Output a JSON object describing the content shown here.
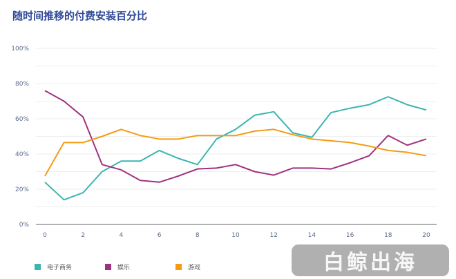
{
  "chart_data": {
    "type": "line",
    "title": "随时间推移的付费安装百分比",
    "xlabel": "",
    "ylabel": "",
    "x": [
      0,
      1,
      2,
      3,
      4,
      5,
      6,
      7,
      8,
      9,
      10,
      11,
      12,
      13,
      14,
      15,
      16,
      17,
      18,
      19,
      20
    ],
    "xticks": [
      "0",
      "2",
      "4",
      "6",
      "8",
      "10",
      "12",
      "14",
      "16",
      "18",
      "20"
    ],
    "yticks": [
      "0%",
      "20%",
      "40%",
      "60%",
      "80%",
      "100%"
    ],
    "ylim": [
      0,
      100
    ],
    "xlim": [
      0,
      20
    ],
    "grid": true,
    "legend_position": "bottom-left",
    "series": [
      {
        "name": "电子商务",
        "color": "#3ab5b0",
        "values": [
          24,
          14,
          18,
          30,
          36,
          36,
          42,
          37.5,
          34,
          48.5,
          54,
          62,
          64,
          52,
          49.5,
          63.5,
          66,
          68,
          72.5,
          68,
          65
        ]
      },
      {
        "name": "娱乐",
        "color": "#a0317f",
        "values": [
          76,
          70,
          61,
          34,
          31,
          25,
          24,
          27.5,
          31.5,
          32,
          34,
          30,
          28,
          32,
          32,
          31.5,
          35,
          39,
          50.5,
          45,
          48.5
        ]
      },
      {
        "name": "游戏",
        "color": "#f39c12",
        "values": [
          27.5,
          46.5,
          46.5,
          50,
          54,
          50.5,
          48.5,
          48.5,
          50.5,
          50.5,
          50.5,
          53,
          54,
          51,
          48.5,
          47.5,
          46.5,
          44.5,
          42,
          41,
          39
        ]
      }
    ]
  },
  "watermark": "白鲸出海"
}
